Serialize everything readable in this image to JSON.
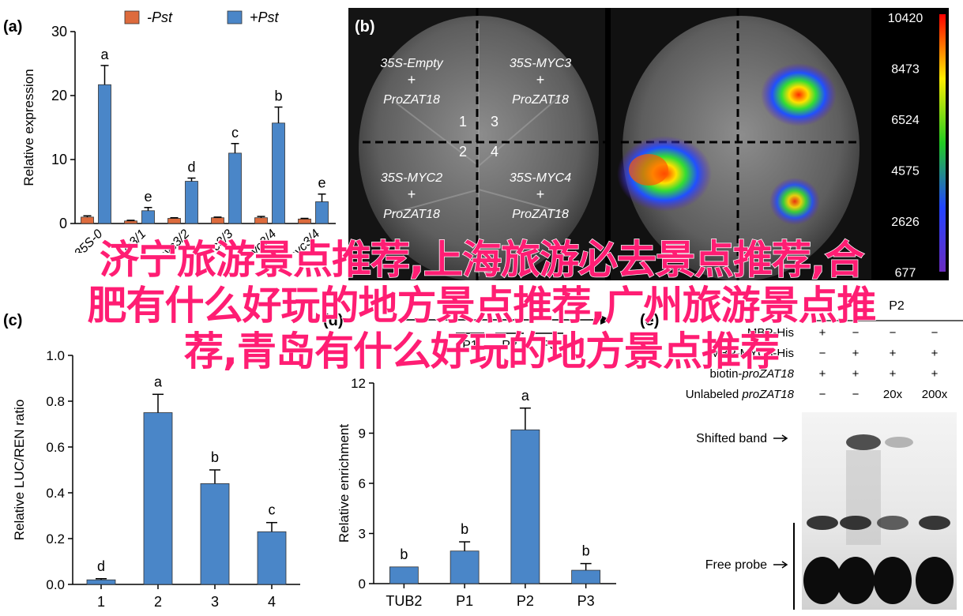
{
  "panels": {
    "a": {
      "label": "(a)"
    },
    "b": {
      "label": "(b)"
    },
    "c": {
      "label": "(c)"
    },
    "d": {
      "label": "(d)"
    },
    "e": {
      "label": "(e)"
    }
  },
  "chart_data": [
    {
      "panel": "a",
      "type": "bar",
      "xlabel": "",
      "ylabel": "Relative expression",
      "ylim": [
        0,
        30
      ],
      "yticks": [
        0,
        10,
        20,
        30
      ],
      "categories": [
        "35S-0",
        "myc3/1",
        "myc3/2",
        "myc3/3",
        "myc3/4",
        "myc3/4"
      ],
      "series": [
        {
          "name": "-Pst",
          "color": "#dd6b3d",
          "values": [
            1.0,
            0.4,
            0.8,
            0.9,
            0.9,
            0.7
          ],
          "errors": [
            0.2,
            0.1,
            0.1,
            0.1,
            0.2,
            0.1
          ]
        },
        {
          "name": "+Pst",
          "color": "#4a86c8",
          "values": [
            21.7,
            2.0,
            6.6,
            11.0,
            15.7,
            3.4
          ],
          "errors": [
            3.0,
            0.5,
            0.5,
            1.5,
            2.5,
            1.2
          ],
          "letters": [
            "a",
            "e",
            "d",
            "c",
            "b",
            "e"
          ]
        }
      ],
      "legend": "top"
    },
    {
      "panel": "b",
      "type": "heatmap",
      "quadrants": [
        {
          "num": "1",
          "line1": "35S-Empty",
          "line2": "+",
          "line3": "ProZAT18"
        },
        {
          "num": "3",
          "line1": "35S-MYC3",
          "line2": "+",
          "line3": "ProZAT18"
        },
        {
          "num": "2",
          "line1": "35S-MYC2",
          "line2": "+",
          "line3": "ProZAT18"
        },
        {
          "num": "4",
          "line1": "35S-MYC4",
          "line2": "+",
          "line3": "ProZAT18"
        }
      ],
      "colorbar": {
        "ticks": [
          "10420",
          "8473",
          "6524",
          "4575",
          "2626",
          "677"
        ]
      }
    },
    {
      "panel": "c",
      "type": "bar",
      "xlabel": "",
      "ylabel": "Relative LUC/REN ratio",
      "ylim": [
        0,
        1.0
      ],
      "yticks": [
        "0.0",
        "0.2",
        "0.4",
        "0.6",
        "0.8",
        "1.0"
      ],
      "categories": [
        "1",
        "2",
        "3",
        "4"
      ],
      "values": [
        0.02,
        0.75,
        0.44,
        0.23
      ],
      "errors": [
        0.005,
        0.08,
        0.06,
        0.04
      ],
      "letters": [
        "d",
        "a",
        "b",
        "c"
      ],
      "color": "#4a86c8"
    },
    {
      "panel": "d",
      "type": "bar",
      "xlabel": "",
      "ylabel": "Relative enrichment",
      "ylim": [
        0,
        12
      ],
      "yticks": [
        "0",
        "3",
        "6",
        "9",
        "12"
      ],
      "categories": [
        "TUB2",
        "P1",
        "P2",
        "P3"
      ],
      "values": [
        1.0,
        1.95,
        9.2,
        0.8
      ],
      "errors": [
        0,
        0.55,
        1.3,
        0.4
      ],
      "letters": [
        "b",
        "b",
        "a",
        "b"
      ],
      "color": "#4a86c8",
      "promoter_regions": [
        "P1",
        "P2",
        "P3"
      ]
    },
    {
      "panel": "e",
      "type": "table",
      "header": "P2",
      "rows": [
        {
          "label": "MBP-His",
          "cells": [
            "+",
            "−",
            "−",
            "−"
          ]
        },
        {
          "label": "MBP-MYC3-His",
          "cells": [
            "−",
            "+",
            "+",
            "+"
          ]
        },
        {
          "label_prefix": "biotin-",
          "label_italic": "proZAT18",
          "cells": [
            "+",
            "+",
            "+",
            "+"
          ]
        },
        {
          "label_prefix": "Unlabeled ",
          "label_italic": "proZAT18",
          "cells": [
            "−",
            "−",
            "20x",
            "200x"
          ]
        }
      ],
      "annotations": [
        "Shifted band",
        "Free probe"
      ]
    }
  ],
  "overlay_text": [
    "济宁旅游景点推荐,上海旅游必去景点推荐,合",
    "肥有什么好玩的地方景点推荐,广州旅游景点推",
    "荐,青岛有什么好玩的地方景点推荐"
  ]
}
